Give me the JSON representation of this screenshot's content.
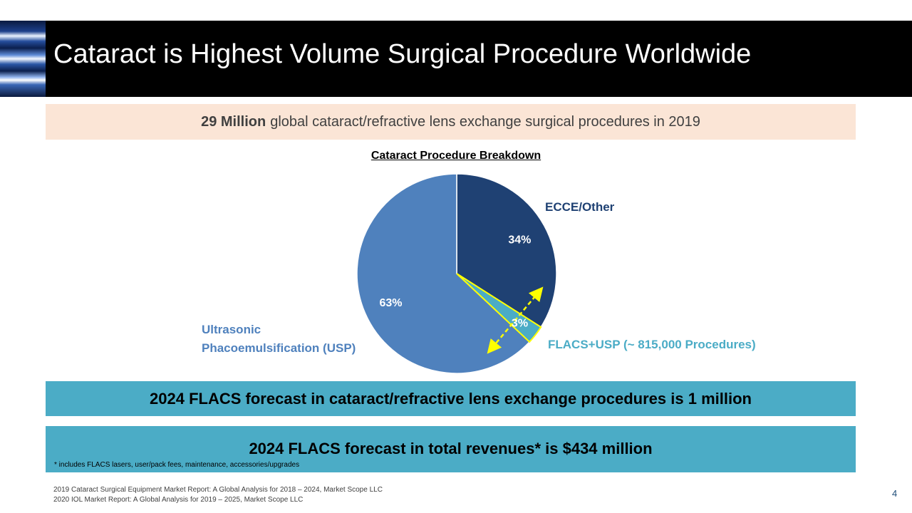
{
  "slide": {
    "title": "Cataract is Highest Volume Surgical Procedure Worldwide",
    "summary_bold": "29 Million",
    "summary_text": "global cataract/refractive lens exchange surgical procedures in 2019",
    "forecast_procedures": "2024 FLACS forecast in cataract/refractive lens exchange procedures is 1 million",
    "forecast_revenue": "2024 FLACS forecast in total revenues* is $434 million",
    "footnote": "* includes FLACS lasers, user/pack fees, maintenance, accessories/upgrades",
    "sources": [
      "2019 Cataract Surgical Equipment Market Report: A Global Analysis for 2018 – 2024,  Market Scope LLC",
      "2020 IOL Market Report: A Global Analysis for 2019 – 2025,  Market Scope LLC"
    ],
    "page_number": "4"
  },
  "chart_data": {
    "type": "pie",
    "title": "Cataract Procedure Breakdown",
    "slices": [
      {
        "name": "ECCE/Other",
        "value": 34,
        "label": "34%",
        "color": "#1f4173"
      },
      {
        "name": "FLACS+USP (~ 815,000 Procedures)",
        "value": 3,
        "label": "3%",
        "color": "#4bacc6"
      },
      {
        "name": "Ultrasonic Phacoemulsification  (USP)",
        "value": 63,
        "label": "63%",
        "color": "#4f81bd"
      }
    ],
    "category_labels": {
      "ecce": "ECCE/Other",
      "flacs": "FLACS+USP (~ 815,000 Procedures)",
      "usp_line1": "Ultrasonic",
      "usp_line2": "Phacoemulsification  (USP)"
    },
    "label_colors": {
      "ecce": "#1f4173",
      "flacs": "#4bacc6",
      "usp": "#4f81bd"
    },
    "highlight_color": "#ffff00"
  }
}
